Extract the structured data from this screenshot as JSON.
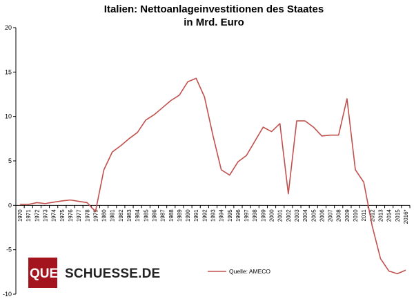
{
  "chart_data": {
    "type": "line",
    "title_line1": "Italien: Nettoanlageinvestitionen des Staates",
    "title_line2": "in Mrd. Euro",
    "xlabel": "",
    "ylabel": "",
    "ylim": [
      -10,
      20
    ],
    "yticks": [
      -10,
      -5,
      0,
      5,
      10,
      15,
      20
    ],
    "grid": false,
    "legend_position": "bottom-center",
    "line_color": "#c0504d",
    "categories": [
      "1970",
      "1971",
      "1972",
      "1973",
      "1974",
      "1975",
      "1976",
      "1977",
      "1978",
      "1979",
      "1980",
      "1981",
      "1982",
      "1983",
      "1984",
      "1985",
      "1986",
      "1987",
      "1988",
      "1989",
      "1990",
      "1991",
      "1992",
      "1993",
      "1994",
      "1995",
      "1996",
      "1997",
      "1998",
      "1999",
      "2000",
      "2001",
      "2002",
      "2003",
      "2004",
      "2005",
      "2006",
      "2007",
      "2008",
      "2009",
      "2010",
      "2011",
      "2012",
      "2013",
      "2014",
      "2015",
      "2016*"
    ],
    "series": [
      {
        "name": "Quelle: AMECO",
        "values": [
          0.1,
          0.1,
          0.3,
          0.2,
          0.35,
          0.5,
          0.6,
          0.45,
          0.3,
          -0.7,
          4.0,
          6.0,
          6.7,
          7.5,
          8.2,
          9.6,
          10.2,
          11.0,
          11.8,
          12.4,
          13.9,
          14.3,
          12.2,
          7.9,
          4.0,
          3.4,
          4.9,
          5.6,
          7.2,
          8.8,
          8.3,
          9.2,
          1.3,
          9.5,
          9.5,
          8.8,
          7.8,
          7.9,
          7.9,
          12.0,
          4.0,
          2.6,
          -2.3,
          -6.0,
          -7.4,
          -7.7,
          -7.3
        ]
      }
    ]
  },
  "logo": {
    "part1": "QUER",
    "part2": "SCHUESSE.DE",
    "color": "#a3141e"
  }
}
